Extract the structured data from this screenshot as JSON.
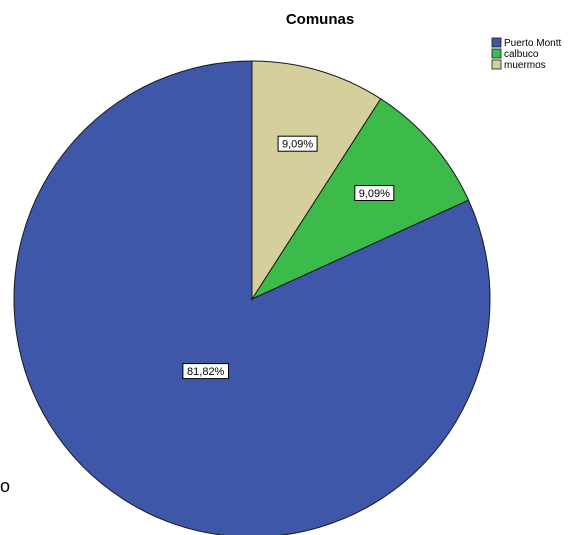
{
  "chart_data": {
    "type": "pie",
    "title": "Comunas",
    "categories": [
      "Puerto Montt",
      "calbuco",
      "muermos"
    ],
    "values": [
      81.82,
      9.09,
      9.09
    ],
    "labels": [
      "81,82%",
      "9,09%",
      "9,09%"
    ],
    "colors": [
      "#3f57a8",
      "#3dbb4a",
      "#d5cf9c"
    ],
    "legend": "top-right",
    "start_angle_deg": 0,
    "direction": "counterclockwise"
  },
  "stray_text": "o"
}
